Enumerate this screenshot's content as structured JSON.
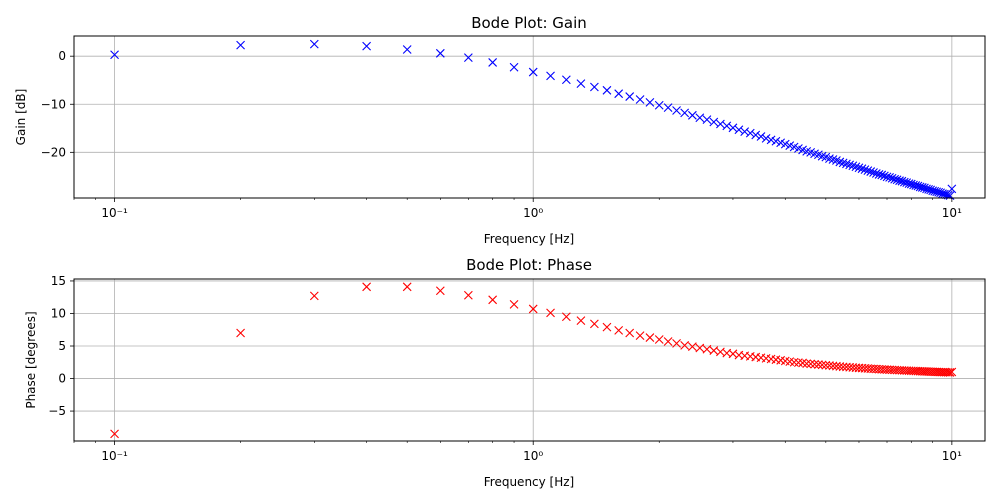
{
  "chart_data": [
    {
      "type": "scatter",
      "title": "Bode Plot: Gain",
      "xlabel": "Frequency [Hz]",
      "ylabel": "Gain [dB]",
      "xscale": "log",
      "xlim": [
        0.08,
        12
      ],
      "ylim": [
        -29.5,
        4.2
      ],
      "yticks": [
        0,
        -10,
        -20
      ],
      "ytick_labels": [
        "0",
        "−10",
        "−20"
      ],
      "xticks": [
        0.1,
        1,
        10
      ],
      "xtick_labels": [
        "10⁻¹",
        "10⁰",
        "10¹"
      ],
      "grid": true,
      "marker": "x",
      "color": "#0000ff",
      "x": [
        0.1,
        0.2,
        0.3,
        0.4,
        0.5,
        0.6,
        0.7,
        0.8,
        0.9,
        1.0,
        1.1,
        1.2,
        1.3,
        1.4,
        1.5,
        1.6,
        1.7,
        1.8,
        1.9,
        2.0,
        2.1,
        2.2,
        2.3,
        2.4,
        2.5,
        2.6,
        2.7,
        2.8,
        2.9,
        3.0,
        3.1,
        3.2,
        3.3,
        3.4,
        3.5,
        3.6,
        3.7,
        3.8,
        3.9,
        4.0,
        4.1,
        4.2,
        4.3,
        4.4,
        4.5,
        4.6,
        4.7,
        4.8,
        4.9,
        5.0,
        5.1,
        5.2,
        5.3,
        5.4,
        5.5,
        5.6,
        5.7,
        5.8,
        5.9,
        6.0,
        6.1,
        6.2,
        6.3,
        6.4,
        6.5,
        6.6,
        6.7,
        6.8,
        6.9,
        7.0,
        7.1,
        7.2,
        7.3,
        7.4,
        7.5,
        7.6,
        7.7,
        7.8,
        7.9,
        8.0,
        8.1,
        8.2,
        8.3,
        8.4,
        8.5,
        8.6,
        8.7,
        8.8,
        8.9,
        9.0,
        9.1,
        9.2,
        9.3,
        9.4,
        9.5,
        9.6,
        9.7,
        9.8,
        9.9,
        10.0
      ],
      "y": [
        0.3,
        2.3,
        2.5,
        2.1,
        1.4,
        0.6,
        -0.3,
        -1.3,
        -2.3,
        -3.3,
        -4.1,
        -4.9,
        -5.7,
        -6.4,
        -7.1,
        -7.8,
        -8.4,
        -9.0,
        -9.6,
        -10.2,
        -10.7,
        -11.3,
        -11.8,
        -12.3,
        -12.8,
        -13.2,
        -13.7,
        -14.1,
        -14.5,
        -14.9,
        -15.3,
        -15.7,
        -16.0,
        -16.4,
        -16.7,
        -17.1,
        -17.4,
        -17.7,
        -18.0,
        -18.3,
        -18.6,
        -18.9,
        -19.2,
        -19.5,
        -19.8,
        -20.0,
        -20.3,
        -20.5,
        -20.8,
        -21.0,
        -21.3,
        -21.5,
        -21.7,
        -22.0,
        -22.2,
        -22.4,
        -22.6,
        -22.8,
        -23.0,
        -23.2,
        -23.4,
        -23.6,
        -23.8,
        -24.0,
        -24.2,
        -24.4,
        -24.6,
        -24.7,
        -24.9,
        -25.1,
        -25.2,
        -25.4,
        -25.6,
        -25.7,
        -25.9,
        -26.0,
        -26.2,
        -26.3,
        -26.5,
        -26.6,
        -26.8,
        -26.9,
        -27.0,
        -27.2,
        -27.3,
        -27.4,
        -27.6,
        -27.7,
        -27.8,
        -28.0,
        -28.1,
        -28.2,
        -28.3,
        -28.4,
        -28.6,
        -28.7,
        -28.8,
        -28.9,
        -29.0,
        -27.6
      ]
    },
    {
      "type": "scatter",
      "title": "Bode Plot: Phase",
      "xlabel": "Frequency [Hz]",
      "ylabel": "Phase [degrees]",
      "xscale": "log",
      "xlim": [
        0.08,
        12
      ],
      "ylim": [
        -9.6,
        15.3
      ],
      "yticks": [
        15,
        10,
        5,
        0,
        -5
      ],
      "ytick_labels": [
        "15",
        "10",
        "5",
        "0",
        "−5"
      ],
      "xticks": [
        0.1,
        1,
        10
      ],
      "xtick_labels": [
        "10⁻¹",
        "10⁰",
        "10¹"
      ],
      "grid": true,
      "marker": "x",
      "color": "#ff0000",
      "x": [
        0.1,
        0.2,
        0.3,
        0.4,
        0.5,
        0.6,
        0.7,
        0.8,
        0.9,
        1.0,
        1.1,
        1.2,
        1.3,
        1.4,
        1.5,
        1.6,
        1.7,
        1.8,
        1.9,
        2.0,
        2.1,
        2.2,
        2.3,
        2.4,
        2.5,
        2.6,
        2.7,
        2.8,
        2.9,
        3.0,
        3.1,
        3.2,
        3.3,
        3.4,
        3.5,
        3.6,
        3.7,
        3.8,
        3.9,
        4.0,
        4.1,
        4.2,
        4.3,
        4.4,
        4.5,
        4.6,
        4.7,
        4.8,
        4.9,
        5.0,
        5.1,
        5.2,
        5.3,
        5.4,
        5.5,
        5.6,
        5.7,
        5.8,
        5.9,
        6.0,
        6.1,
        6.2,
        6.3,
        6.4,
        6.5,
        6.6,
        6.7,
        6.8,
        6.9,
        7.0,
        7.1,
        7.2,
        7.3,
        7.4,
        7.5,
        7.6,
        7.7,
        7.8,
        7.9,
        8.0,
        8.1,
        8.2,
        8.3,
        8.4,
        8.5,
        8.6,
        8.7,
        8.8,
        8.9,
        9.0,
        9.1,
        9.2,
        9.3,
        9.4,
        9.5,
        9.6,
        9.7,
        9.8,
        9.9,
        10.0
      ],
      "y": [
        -8.5,
        7.0,
        12.7,
        14.1,
        14.1,
        13.5,
        12.8,
        12.1,
        11.4,
        10.7,
        10.1,
        9.5,
        8.9,
        8.4,
        7.9,
        7.4,
        7.0,
        6.6,
        6.3,
        6.0,
        5.7,
        5.4,
        5.1,
        4.9,
        4.7,
        4.5,
        4.3,
        4.1,
        3.9,
        3.8,
        3.6,
        3.5,
        3.4,
        3.3,
        3.2,
        3.1,
        3.0,
        2.9,
        2.8,
        2.7,
        2.6,
        2.5,
        2.45,
        2.4,
        2.3,
        2.25,
        2.2,
        2.15,
        2.1,
        2.05,
        2.0,
        1.95,
        1.9,
        1.85,
        1.8,
        1.78,
        1.74,
        1.7,
        1.66,
        1.63,
        1.6,
        1.57,
        1.54,
        1.51,
        1.48,
        1.46,
        1.43,
        1.41,
        1.39,
        1.37,
        1.35,
        1.33,
        1.31,
        1.29,
        1.27,
        1.25,
        1.23,
        1.22,
        1.2,
        1.18,
        1.17,
        1.15,
        1.14,
        1.12,
        1.11,
        1.09,
        1.08,
        1.07,
        1.05,
        1.04,
        1.03,
        1.02,
        1.0,
        0.99,
        0.98,
        0.97,
        0.96,
        0.95,
        0.94,
        1.0
      ]
    }
  ]
}
